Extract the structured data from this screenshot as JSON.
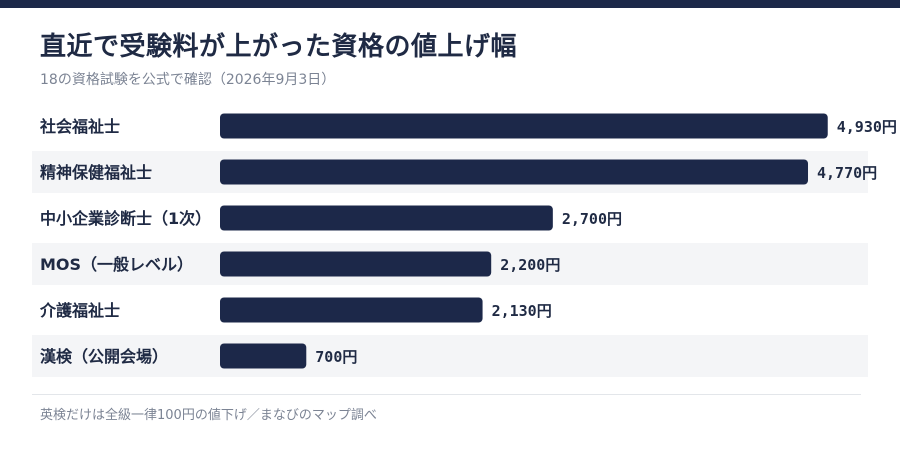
{
  "header": {
    "title": "直近で受験料が上がった資格の値上げ幅",
    "subtitle": "18の資格試験を公式で確認（2026年9月3日）"
  },
  "footnote": "英検だけは全級一律100円の値下げ／まなびのマップ調べ",
  "colors": {
    "bar": "#1c2849",
    "stripe": "#f4f5f7",
    "text": "#1f2a44",
    "muted": "#7c8494"
  },
  "chart_data": {
    "type": "bar",
    "orientation": "horizontal",
    "categories": [
      "社会福祉士",
      "精神保健福祉士",
      "中小企業診断士（1次）",
      "MOS（一般レベル）",
      "介護福祉士",
      "漢検（公開会場）"
    ],
    "values": [
      4930,
      4770,
      2700,
      2200,
      2130,
      700
    ],
    "value_labels": [
      "4,930円",
      "4,770円",
      "2,700円",
      "2,200円",
      "2,130円",
      "700円"
    ],
    "xlim": [
      0,
      5500
    ],
    "grid": false,
    "legend": "none"
  }
}
